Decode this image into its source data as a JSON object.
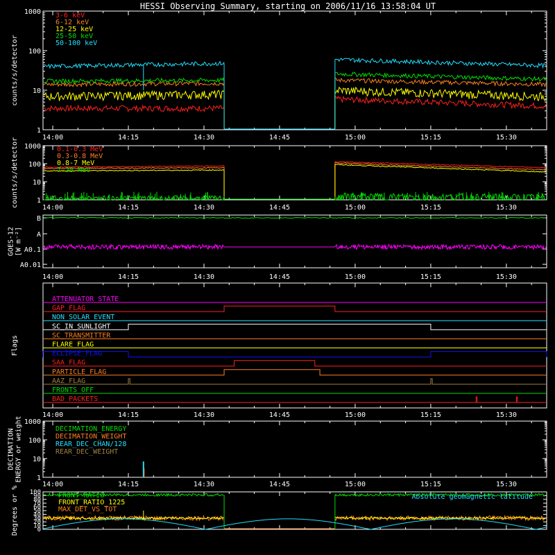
{
  "title": "HESSI Observing Summary, starting on 2006/11/16 13:58:04 UT",
  "colors": {
    "white": "#ffffff",
    "red": "#ff2020",
    "orange": "#ff7f20",
    "yellow": "#ffff00",
    "green": "#00e000",
    "cyan": "#20e0ff",
    "magenta": "#ff00ff",
    "blue": "#1010ff",
    "olive": "#a08040",
    "gray": "#bbbbbb"
  },
  "chart_data": [
    {
      "type": "line",
      "ylabel": "counts/s/detector",
      "yscale": "log",
      "ylim": [
        1,
        1000
      ],
      "yticks": [
        "1",
        "10",
        "100",
        "1000"
      ],
      "xticks": [
        "14:00",
        "14:15",
        "14:30",
        "14:45",
        "15:00",
        "15:15",
        "15:30"
      ],
      "xlim": [
        "13:58:04",
        "15:38:00"
      ],
      "data_gap": [
        "14:34",
        "14:56"
      ],
      "legend": [
        "3-6 keV",
        "6-12 keV",
        "12-25 keV",
        "25-50 keV",
        "50-100 keV"
      ],
      "series": [
        {
          "name": "3-6 keV",
          "color": "#ff2020",
          "before_gap": [
            3.5,
            3.5
          ],
          "after_gap": [
            6,
            4
          ]
        },
        {
          "name": "6-12 keV",
          "color": "#ff7f20",
          "before_gap": [
            14,
            15
          ],
          "after_gap": [
            18,
            14
          ]
        },
        {
          "name": "12-25 keV",
          "color": "#ffff00",
          "before_gap": [
            7,
            8
          ],
          "after_gap": [
            10,
            7
          ]
        },
        {
          "name": "25-50 keV",
          "color": "#00e000",
          "before_gap": [
            17,
            18
          ],
          "after_gap": [
            26,
            19
          ]
        },
        {
          "name": "50-100 keV",
          "color": "#20e0ff",
          "before_gap": [
            40,
            48
          ],
          "after_gap": [
            60,
            42
          ]
        }
      ]
    },
    {
      "type": "line",
      "ylabel": "counts/s/detector",
      "yscale": "log",
      "ylim": [
        1,
        1000
      ],
      "yticks": [
        "1",
        "10",
        "100",
        "1000"
      ],
      "xticks": [
        "14:00",
        "14:15",
        "14:30",
        "14:45",
        "15:00",
        "15:15",
        "15:30"
      ],
      "legend": [
        "0.1-0.3 MeV",
        "0.3-0.8 MeV",
        "0.8-7 MeV",
        "7-20 MeV"
      ],
      "series": [
        {
          "name": "0.1-0.3 MeV",
          "color": "#ff2020",
          "before_gap": [
            65,
            75
          ],
          "after_gap": [
            130,
            60
          ]
        },
        {
          "name": "0.3-0.8 MeV",
          "color": "#ff7f20",
          "before_gap": [
            55,
            60
          ],
          "after_gap": [
            110,
            45
          ]
        },
        {
          "name": "0.8-7 MeV",
          "color": "#ffff00",
          "before_gap": [
            40,
            45
          ],
          "after_gap": [
            90,
            35
          ]
        },
        {
          "name": "7-20 MeV",
          "color": "#00e000",
          "before_gap": [
            1.2,
            1.2
          ],
          "after_gap": [
            1.5,
            1.3
          ]
        }
      ]
    },
    {
      "type": "line",
      "ylabel": "GOES-12 [W m-2]",
      "ylabel_lines": [
        "GOES-12",
        "[W m⁻²]"
      ],
      "yticks": [
        "B",
        "A",
        "A0.1",
        "A0.01"
      ],
      "xticks": [
        "14:00",
        "14:15",
        "14:30",
        "14:45",
        "15:00",
        "15:15",
        "15:30"
      ],
      "series": [
        {
          "name": "",
          "color": "#00e000",
          "level": "B"
        },
        {
          "name": "",
          "color": "#ff00ff",
          "level": "A0.1"
        }
      ]
    },
    {
      "type": "line",
      "ylabel": "Flags",
      "xticks": [
        "14:00",
        "14:15",
        "14:30",
        "14:45",
        "15:00",
        "15:15",
        "15:30"
      ],
      "flags": [
        {
          "name": "ATTENUATOR_STATE",
          "color": "#ff00ff",
          "high": []
        },
        {
          "name": "GAP_FLAG",
          "color": "#ff2020",
          "high": [
            [
              "14:34",
              "14:56"
            ]
          ]
        },
        {
          "name": "NON_SOLAR_EVENT",
          "color": "#20e0ff",
          "high": []
        },
        {
          "name": "SC_IN_SUNLIGHT",
          "color": "#ffffff",
          "high": [
            [
              "14:15",
              "15:15"
            ]
          ]
        },
        {
          "name": "SC_TRANSMITTER",
          "color": "#ff7f20",
          "high": []
        },
        {
          "name": "FLARE_FLAG",
          "color": "#ffff00",
          "high": []
        },
        {
          "name": "ECLIPSE_FLAG",
          "color": "#1010ff",
          "high": [
            [
              "13:58",
              "14:15"
            ],
            [
              "15:15",
              "15:38"
            ]
          ]
        },
        {
          "name": "SAA_FLAG",
          "color": "#ff2020",
          "high": [
            [
              "14:36",
              "14:52"
            ]
          ]
        },
        {
          "name": "PARTICLE_FLAG",
          "color": "#ff7f20",
          "high": [
            [
              "14:34",
              "14:53"
            ]
          ]
        },
        {
          "name": "AAZ_FLAG",
          "color": "#a08040",
          "high": [
            [
              "14:15",
              "14:15.3"
            ],
            [
              "15:15",
              "15:15.3"
            ]
          ]
        },
        {
          "name": "FRONTS_OFF",
          "color": "#00e000",
          "high": []
        },
        {
          "name": "BAD_PACKETS",
          "color": "#ff2020",
          "high": [
            [
              "15:24",
              "15:24.2"
            ],
            [
              "15:32",
              "15:32.2"
            ]
          ]
        }
      ]
    },
    {
      "type": "line",
      "ylabel": "DECIMATION ENERGY or weight",
      "ylabel_lines": [
        "DECIMATION",
        "ENERGY or weight"
      ],
      "yscale": "log",
      "ylim": [
        1,
        1000
      ],
      "yticks": [
        "1",
        "10",
        "100",
        "1000"
      ],
      "xticks": [
        "14:00",
        "14:15",
        "14:30",
        "14:45",
        "15:00",
        "15:15",
        "15:30"
      ],
      "legend": [
        "DECIMATION_ENERGY",
        "DECIMATION_WEIGHT",
        "REAR_DEC_CHAN/128",
        "REAR_DEC_WEIGHT"
      ],
      "series": [
        {
          "name": "DECIMATION_ENERGY",
          "color": "#00e000"
        },
        {
          "name": "DECIMATION_WEIGHT",
          "color": "#ff7f20"
        },
        {
          "name": "REAR_DEC_CHAN/128",
          "color": "#20e0ff",
          "spike": {
            "time": "14:18",
            "value": 7
          }
        },
        {
          "name": "REAR_DEC_WEIGHT",
          "color": "#a08040"
        }
      ]
    },
    {
      "type": "line",
      "ylabel": "Degrees or %",
      "ylim": [
        0,
        100
      ],
      "yticks": [
        "0",
        "10",
        "20",
        "30",
        "40",
        "50",
        "60",
        "70",
        "80",
        "90",
        "100"
      ],
      "xticks": [
        "14:00",
        "14:15",
        "14:30",
        "14:45",
        "15:00",
        "15:15",
        "15:30"
      ],
      "legend": [
        "FRONT_RATIO",
        "FRONT_RATIO_1225",
        "MAX_DET_VS_TOT"
      ],
      "annotation": "Absolute geomagnetic latitude",
      "series": [
        {
          "name": "FRONT_RATIO",
          "color": "#00e000",
          "value": 92
        },
        {
          "name": "FRONT_RATIO_1225",
          "color": "#ffff00",
          "value": 30
        },
        {
          "name": "MAX_DET_VS_TOT",
          "color": "#ff7f20",
          "value": 30
        },
        {
          "name": "Absolute geomagnetic latitude",
          "color": "#20e0ff",
          "min": 0,
          "max": 28
        }
      ]
    }
  ]
}
